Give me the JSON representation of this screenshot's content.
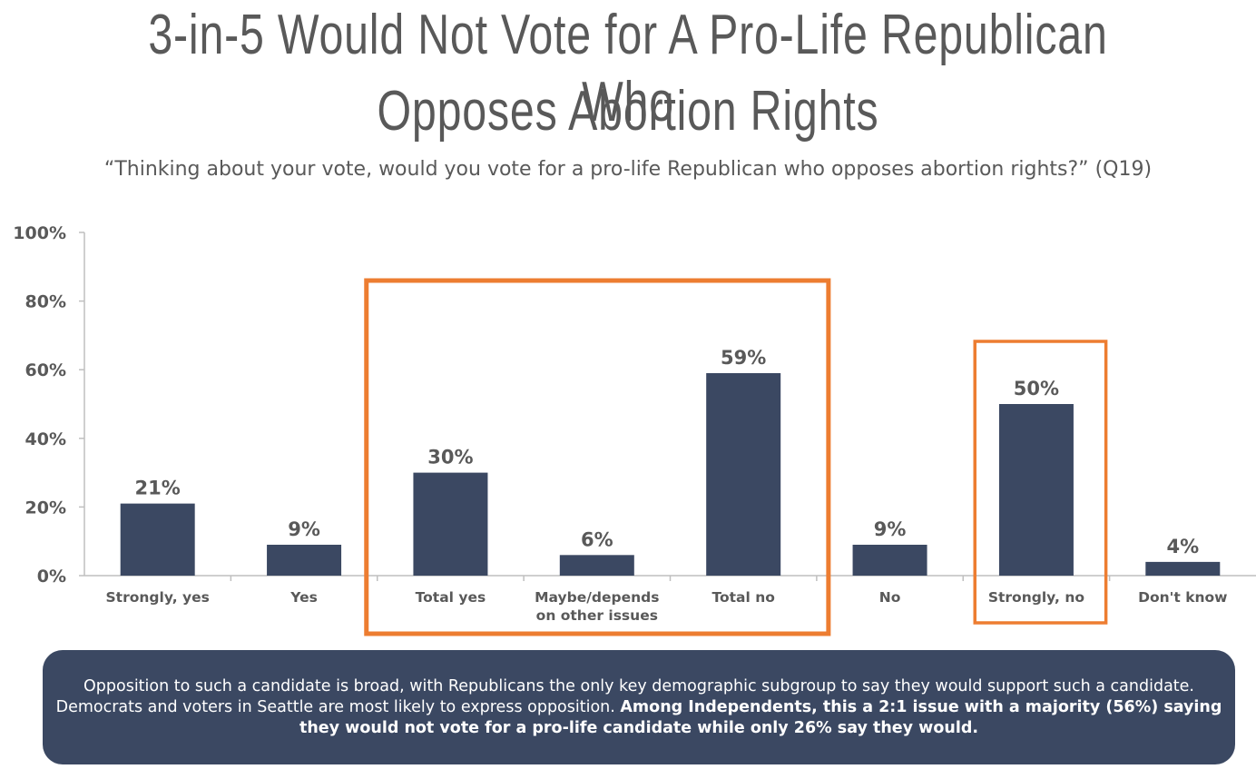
{
  "title": {
    "line1": "3-in-5 Would Not Vote for A Pro-Life Republican Who",
    "line2": "Opposes Abortion Rights"
  },
  "subtitle": "“Thinking about your vote, would you vote for a pro-life Republican who opposes abortion rights?” (Q19)",
  "chart_data": {
    "type": "bar",
    "categories": [
      "Strongly, yes",
      "Yes",
      "Total yes",
      "Maybe/depends on other issues",
      "Total no",
      "No",
      "Strongly, no",
      "Don't know"
    ],
    "category_lines": [
      [
        "Strongly, yes"
      ],
      [
        "Yes"
      ],
      [
        "Total yes"
      ],
      [
        "Maybe/depends",
        "on other issues"
      ],
      [
        "Total no"
      ],
      [
        "No"
      ],
      [
        "Strongly, no"
      ],
      [
        "Don't know"
      ]
    ],
    "values": [
      21,
      9,
      30,
      6,
      59,
      9,
      50,
      4
    ],
    "value_labels": [
      "21%",
      "9%",
      "30%",
      "6%",
      "59%",
      "9%",
      "50%",
      "4%"
    ],
    "ylim": [
      0,
      100
    ],
    "yticks": [
      0,
      20,
      40,
      60,
      80,
      100
    ],
    "ytick_labels": [
      "0%",
      "20%",
      "40%",
      "60%",
      "80%",
      "100%"
    ],
    "highlight_groups": [
      [
        2,
        4
      ],
      [
        6,
        6
      ]
    ],
    "grid": false,
    "bar_color": "#3b4862",
    "highlight_color": "#ed7d31"
  },
  "callout": {
    "text_plain": "Opposition to such a candidate is broad, with Republicans the only key demographic subgroup to say they would support such a candidate. Democrats and voters in Seattle are most likely to express opposition. ",
    "text_bold": "Among Independents, this a 2:1 issue with a majority (56%) saying they would not vote for a pro-life candidate while only 26% say they would."
  }
}
